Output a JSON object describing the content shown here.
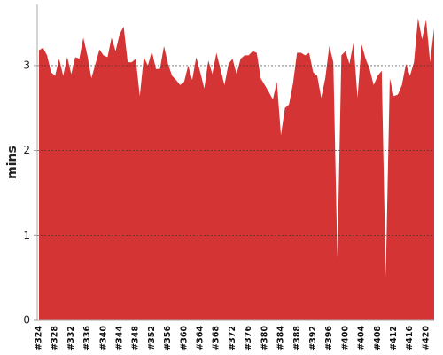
{
  "chart_data": {
    "type": "area",
    "y_label": "mins",
    "color": "#d43434",
    "grid": true,
    "ylim": [
      0,
      3.72
    ],
    "yticks": [
      0,
      1,
      2,
      3
    ],
    "categories": [
      "#324",
      null,
      null,
      null,
      "#328",
      null,
      null,
      null,
      "#332",
      null,
      null,
      null,
      "#336",
      null,
      null,
      null,
      "#340",
      null,
      null,
      null,
      "#344",
      null,
      null,
      null,
      "#348",
      null,
      null,
      null,
      "#352",
      null,
      null,
      null,
      "#356",
      null,
      null,
      null,
      "#360",
      null,
      null,
      null,
      "#364",
      null,
      null,
      null,
      "#368",
      null,
      null,
      null,
      "#372",
      null,
      null,
      null,
      "#376",
      null,
      null,
      null,
      "#380",
      null,
      null,
      null,
      "#384",
      null,
      null,
      null,
      "#388",
      null,
      null,
      null,
      "#392",
      null,
      null,
      null,
      "#396",
      null,
      null,
      null,
      "#400",
      null,
      null,
      null,
      "#404",
      null,
      null,
      null,
      "#408",
      null,
      null,
      null,
      "#412",
      null,
      null,
      null,
      "#416",
      null,
      null,
      null,
      "#420",
      null,
      null
    ],
    "values": [
      3.18,
      3.21,
      3.12,
      2.92,
      2.88,
      3.08,
      2.88,
      3.1,
      2.9,
      3.1,
      3.08,
      3.33,
      3.12,
      2.85,
      3.02,
      3.19,
      3.12,
      3.1,
      3.33,
      3.17,
      3.37,
      3.46,
      3.04,
      3.04,
      3.08,
      2.64,
      3.1,
      3.0,
      3.17,
      2.96,
      2.96,
      3.23,
      3.02,
      2.88,
      2.83,
      2.77,
      2.81,
      3.0,
      2.83,
      3.1,
      2.92,
      2.73,
      3.06,
      2.9,
      3.15,
      2.96,
      2.77,
      3.02,
      3.08,
      2.9,
      3.08,
      3.12,
      3.12,
      3.17,
      3.15,
      2.85,
      2.77,
      2.69,
      2.6,
      2.81,
      2.18,
      2.5,
      2.54,
      2.79,
      3.15,
      3.15,
      3.12,
      3.15,
      2.92,
      2.88,
      2.62,
      2.85,
      3.23,
      3.04,
      0.74,
      3.12,
      3.17,
      3.02,
      3.27,
      2.62,
      3.25,
      3.08,
      2.96,
      2.77,
      2.88,
      2.94,
      0.51,
      2.85,
      2.64,
      2.66,
      2.77,
      3.02,
      2.88,
      3.04,
      3.56,
      3.31,
      3.54,
      3.04,
      3.44
    ]
  }
}
